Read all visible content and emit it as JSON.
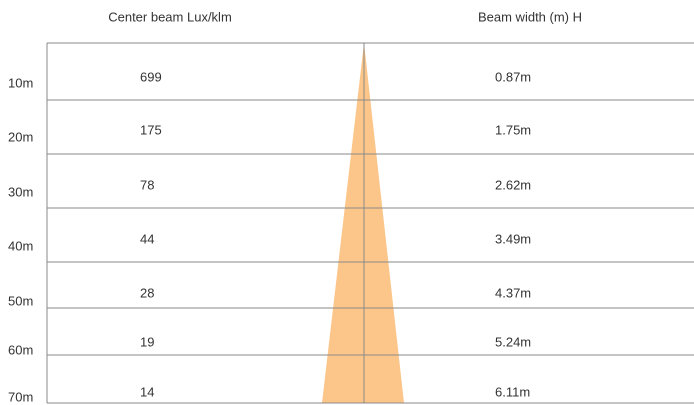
{
  "header": {
    "lux": "Center beam Lux/klm",
    "width": "Beam width (m) H"
  },
  "rows": [
    {
      "distance": "10m",
      "lux": "699",
      "width": "0.87m"
    },
    {
      "distance": "20m",
      "lux": "175",
      "width": "1.75m"
    },
    {
      "distance": "30m",
      "lux": "78",
      "width": "2.62m"
    },
    {
      "distance": "40m",
      "lux": "44",
      "width": "3.49m"
    },
    {
      "distance": "50m",
      "lux": "28",
      "width": "4.37m"
    },
    {
      "distance": "60m",
      "lux": "19",
      "width": "5.24m"
    },
    {
      "distance": "70m",
      "lux": "14",
      "width": "6.11m"
    }
  ]
}
